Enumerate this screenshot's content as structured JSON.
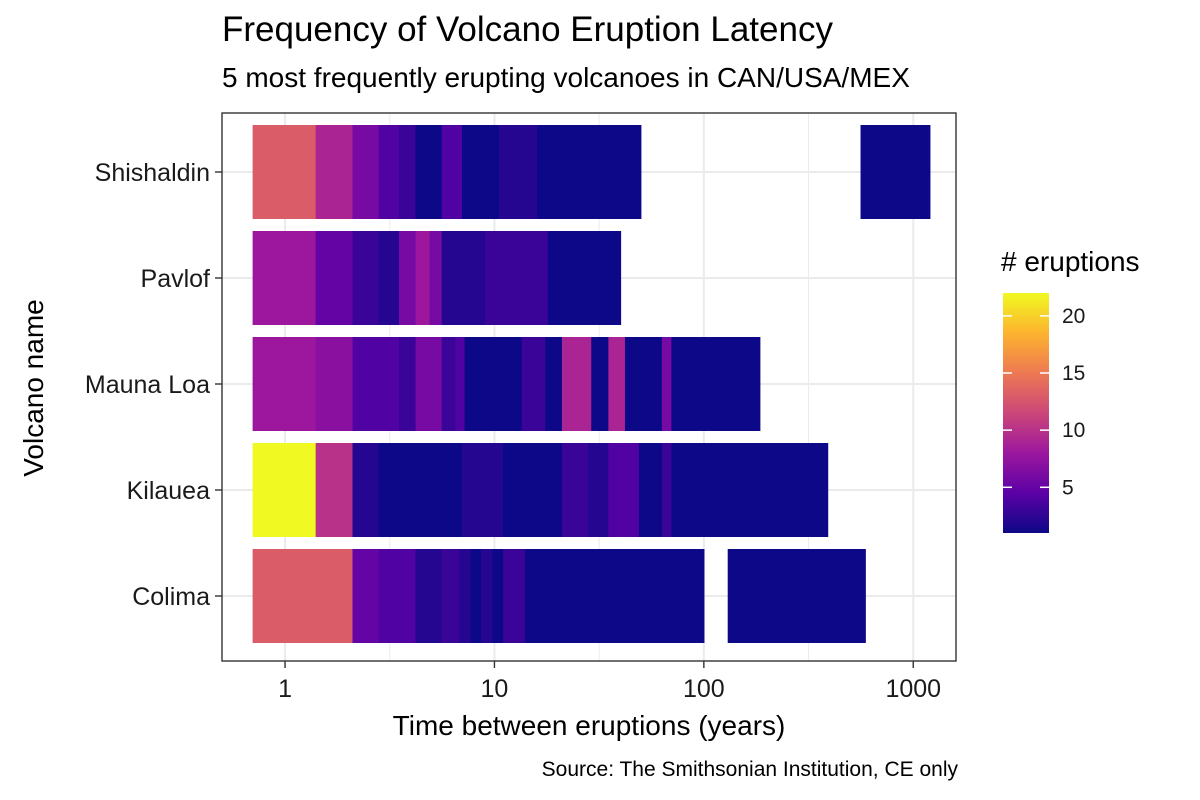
{
  "title": "Frequency of Volcano Eruption Latency",
  "subtitle": "5 most frequently erupting volcanoes in CAN/USA/MEX",
  "caption": "Source: The Smithsonian Institution, CE only",
  "colors": {
    "panel_border": "#333333",
    "grid": "#ebebeb",
    "palette_plasma": [
      "#0d0887",
      "#5c01a6",
      "#9c179e",
      "#cc4778",
      "#ed7953",
      "#fdb32f",
      "#f0f921"
    ]
  },
  "chart_data": {
    "type": "heatmap",
    "xlabel": "Time between eruptions (years)",
    "ylabel": "Volcano name",
    "x_scale": "log10",
    "xlim": [
      0.5,
      1600
    ],
    "x_ticks": [
      1,
      10,
      100,
      1000
    ],
    "x_tick_labels": [
      "1",
      "10",
      "100",
      "1000"
    ],
    "y_categories": [
      "Colima",
      "Kilauea",
      "Mauna Loa",
      "Pavlof",
      "Shishaldin"
    ],
    "grid": true,
    "legend": {
      "title": "# eruptions",
      "position": "right",
      "range": [
        1,
        22
      ],
      "ticks": [
        5,
        10,
        15,
        20
      ],
      "tick_labels": [
        "5",
        "10",
        "15",
        "20"
      ]
    },
    "series": [
      {
        "name": "Shishaldin",
        "cells": [
          {
            "x0": 0.7,
            "x1": 1.4,
            "count": 13
          },
          {
            "x0": 1.4,
            "x1": 2.1,
            "count": 9
          },
          {
            "x0": 2.1,
            "x1": 2.8,
            "count": 6
          },
          {
            "x0": 2.8,
            "x1": 3.5,
            "count": 4
          },
          {
            "x0": 3.5,
            "x1": 4.2,
            "count": 3
          },
          {
            "x0": 4.2,
            "x1": 5.6,
            "count": 1
          },
          {
            "x0": 5.6,
            "x1": 7.0,
            "count": 4
          },
          {
            "x0": 7.0,
            "x1": 10.5,
            "count": 1
          },
          {
            "x0": 10.5,
            "x1": 16.0,
            "count": 2
          },
          {
            "x0": 16.0,
            "x1": 50.0,
            "count": 1
          },
          {
            "x0": 560.0,
            "x1": 1200.0,
            "count": 1
          }
        ]
      },
      {
        "name": "Pavlof",
        "cells": [
          {
            "x0": 0.7,
            "x1": 1.4,
            "count": 8
          },
          {
            "x0": 1.4,
            "x1": 2.1,
            "count": 5
          },
          {
            "x0": 2.1,
            "x1": 2.8,
            "count": 3
          },
          {
            "x0": 2.8,
            "x1": 3.5,
            "count": 2
          },
          {
            "x0": 3.5,
            "x1": 4.2,
            "count": 6
          },
          {
            "x0": 4.2,
            "x1": 4.9,
            "count": 8
          },
          {
            "x0": 4.9,
            "x1": 5.6,
            "count": 6
          },
          {
            "x0": 5.6,
            "x1": 9.0,
            "count": 2
          },
          {
            "x0": 9.0,
            "x1": 18.0,
            "count": 3
          },
          {
            "x0": 18.0,
            "x1": 40.0,
            "count": 1
          }
        ]
      },
      {
        "name": "Mauna Loa",
        "cells": [
          {
            "x0": 0.7,
            "x1": 1.4,
            "count": 8
          },
          {
            "x0": 1.4,
            "x1": 2.1,
            "count": 7
          },
          {
            "x0": 2.1,
            "x1": 3.5,
            "count": 4
          },
          {
            "x0": 3.5,
            "x1": 4.2,
            "count": 3
          },
          {
            "x0": 4.2,
            "x1": 5.6,
            "count": 6
          },
          {
            "x0": 5.6,
            "x1": 6.5,
            "count": 3
          },
          {
            "x0": 6.5,
            "x1": 7.2,
            "count": 4
          },
          {
            "x0": 7.2,
            "x1": 13.5,
            "count": 1
          },
          {
            "x0": 13.5,
            "x1": 17.5,
            "count": 3
          },
          {
            "x0": 17.5,
            "x1": 21.0,
            "count": 1
          },
          {
            "x0": 21.0,
            "x1": 29.0,
            "count": 9
          },
          {
            "x0": 29.0,
            "x1": 35.0,
            "count": 1
          },
          {
            "x0": 35.0,
            "x1": 42.0,
            "count": 9
          },
          {
            "x0": 42.0,
            "x1": 63.0,
            "count": 1
          },
          {
            "x0": 63.0,
            "x1": 70.0,
            "count": 6
          },
          {
            "x0": 70.0,
            "x1": 185.0,
            "count": 1
          }
        ]
      },
      {
        "name": "Kilauea",
        "cells": [
          {
            "x0": 0.7,
            "x1": 1.4,
            "count": 22
          },
          {
            "x0": 1.4,
            "x1": 2.1,
            "count": 10
          },
          {
            "x0": 2.1,
            "x1": 2.8,
            "count": 2
          },
          {
            "x0": 2.8,
            "x1": 7.0,
            "count": 1
          },
          {
            "x0": 7.0,
            "x1": 11.0,
            "count": 2
          },
          {
            "x0": 11.0,
            "x1": 21.0,
            "count": 1
          },
          {
            "x0": 21.0,
            "x1": 28.0,
            "count": 3
          },
          {
            "x0": 28.0,
            "x1": 35.0,
            "count": 2
          },
          {
            "x0": 35.0,
            "x1": 49.0,
            "count": 4
          },
          {
            "x0": 49.0,
            "x1": 63.0,
            "count": 1
          },
          {
            "x0": 63.0,
            "x1": 70.0,
            "count": 3
          },
          {
            "x0": 70.0,
            "x1": 390.0,
            "count": 1
          }
        ]
      },
      {
        "name": "Colima",
        "cells": [
          {
            "x0": 0.7,
            "x1": 2.1,
            "count": 13
          },
          {
            "x0": 2.1,
            "x1": 2.8,
            "count": 5
          },
          {
            "x0": 2.8,
            "x1": 4.2,
            "count": 4
          },
          {
            "x0": 4.2,
            "x1": 5.6,
            "count": 2
          },
          {
            "x0": 5.6,
            "x1": 6.8,
            "count": 3
          },
          {
            "x0": 6.8,
            "x1": 7.7,
            "count": 2
          },
          {
            "x0": 7.7,
            "x1": 8.6,
            "count": 1
          },
          {
            "x0": 8.6,
            "x1": 9.8,
            "count": 2
          },
          {
            "x0": 9.8,
            "x1": 11.0,
            "count": 1
          },
          {
            "x0": 11.0,
            "x1": 14.0,
            "count": 3
          },
          {
            "x0": 14.0,
            "x1": 100.0,
            "count": 1
          },
          {
            "x0": 130.0,
            "x1": 590.0,
            "count": 1
          }
        ]
      }
    ]
  }
}
